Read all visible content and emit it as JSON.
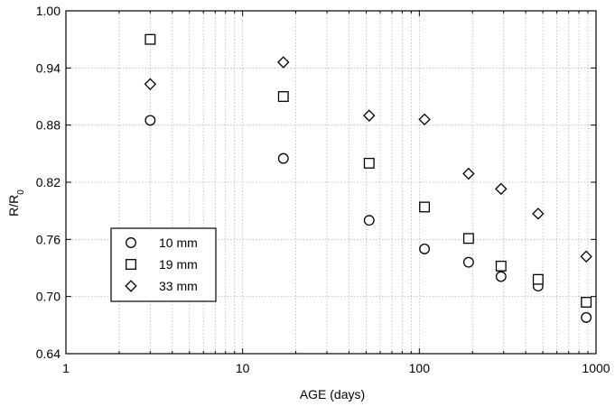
{
  "chart_data": {
    "type": "scatter",
    "xlabel": "AGE (days)",
    "ylabel": "R/R",
    "ylabel_subscript": "0",
    "xscale": "log",
    "xlim": [
      1,
      1000
    ],
    "ylim": [
      0.64,
      1.0
    ],
    "xticks": [
      1,
      10,
      100,
      1000
    ],
    "xtick_labels": [
      "1",
      "10",
      "100",
      "1000"
    ],
    "yticks": [
      0.64,
      0.7,
      0.76,
      0.82,
      0.88,
      0.94,
      1.0
    ],
    "ytick_labels": [
      "0.64",
      "0.70",
      "0.76",
      "0.82",
      "0.88",
      "0.94",
      "1.00"
    ],
    "grid": true,
    "legend_position": "lower-left",
    "series": [
      {
        "name": "10 mm",
        "marker": "circle",
        "x": [
          3,
          17,
          52,
          107,
          190,
          290,
          470,
          880
        ],
        "y": [
          0.885,
          0.845,
          0.78,
          0.75,
          0.736,
          0.721,
          0.711,
          0.678
        ]
      },
      {
        "name": "19 mm",
        "marker": "square",
        "x": [
          3,
          17,
          52,
          107,
          190,
          290,
          470,
          880
        ],
        "y": [
          0.97,
          0.91,
          0.84,
          0.794,
          0.761,
          0.732,
          0.718,
          0.694
        ]
      },
      {
        "name": "33 mm",
        "marker": "diamond",
        "x": [
          3,
          17,
          52,
          107,
          190,
          290,
          470,
          880
        ],
        "y": [
          0.923,
          0.946,
          0.89,
          0.886,
          0.829,
          0.813,
          0.787,
          0.742
        ]
      }
    ]
  }
}
